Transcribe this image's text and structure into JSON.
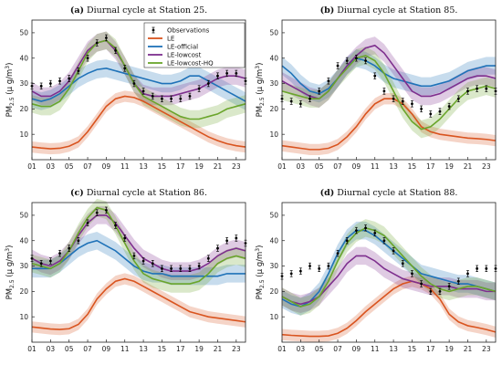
{
  "figure": {
    "xticks": [
      "01",
      "03",
      "05",
      "07",
      "09",
      "11",
      "13",
      "15",
      "17",
      "19",
      "21",
      "23"
    ],
    "yticks": [
      "10",
      "20",
      "30",
      "40",
      "50"
    ],
    "ylabel_main": "PM",
    "ylabel_sub": "2.5",
    "ylabel_unit": " (μ g/m",
    "ylabel_sup": "3",
    "ylabel_close": ")"
  },
  "legend": {
    "items": [
      {
        "label": "Observations",
        "color": "#000000",
        "marker": "errorbar"
      },
      {
        "label": "LE",
        "color": "#d9541f",
        "marker": "line"
      },
      {
        "label": "LE-official",
        "color": "#1f72b8",
        "marker": "line"
      },
      {
        "label": "LE-lowcost",
        "color": "#7e2f8e",
        "marker": "line"
      },
      {
        "label": "LE-lowcost-HQ",
        "color": "#6aa52b",
        "marker": "line"
      }
    ]
  },
  "chart_data": [
    {
      "type": "line",
      "panel_letter": "a",
      "title": "Diurnal cycle at Station 25.",
      "x": [
        1,
        2,
        3,
        4,
        5,
        6,
        7,
        8,
        9,
        10,
        11,
        12,
        13,
        14,
        15,
        16,
        17,
        18,
        19,
        20,
        21,
        22,
        23,
        24
      ],
      "xlim": [
        1,
        24
      ],
      "ylim": [
        0,
        55
      ],
      "ylabel": "PM2.5 (μ g/m3)",
      "series": [
        {
          "name": "Observations",
          "color": "#000000",
          "values": [
            29,
            29,
            30,
            31,
            32,
            35,
            40,
            46,
            48,
            43,
            36,
            30,
            27,
            25,
            24,
            24,
            24,
            25,
            28,
            30,
            33,
            34,
            34,
            31
          ]
        },
        {
          "name": "LE",
          "color": "#d9541f",
          "values": [
            5,
            4.6,
            4.3,
            4.5,
            5.3,
            7,
            11,
            16,
            21,
            24,
            25,
            24.5,
            23,
            21,
            19,
            17,
            15,
            13,
            11,
            9,
            7.5,
            6.3,
            5.5,
            5
          ]
        },
        {
          "name": "LE-official",
          "color": "#1f72b8",
          "values": [
            24,
            23,
            24,
            26,
            29,
            32,
            34,
            35.5,
            36,
            35,
            34,
            33,
            32,
            31,
            30,
            30,
            31,
            33,
            33,
            31,
            29,
            27,
            25,
            23
          ]
        },
        {
          "name": "LE-lowcost",
          "color": "#7e2f8e",
          "values": [
            27,
            25,
            25,
            27,
            31,
            37,
            43,
            46,
            47,
            43,
            37,
            30,
            26,
            25,
            25,
            25,
            26,
            27,
            28,
            30,
            32,
            33,
            33,
            32
          ]
        },
        {
          "name": "LE-lowcost-HQ",
          "color": "#6aa52b",
          "values": [
            22,
            21,
            21,
            23,
            28,
            35,
            42,
            46,
            47,
            44,
            37,
            30,
            25,
            23,
            21,
            19,
            17,
            16,
            16,
            17,
            18,
            20,
            21,
            22
          ]
        }
      ]
    },
    {
      "type": "line",
      "panel_letter": "b",
      "title": "Diurnal cycle at Station 85.",
      "x": [
        1,
        2,
        3,
        4,
        5,
        6,
        7,
        8,
        9,
        10,
        11,
        12,
        13,
        14,
        15,
        16,
        17,
        18,
        19,
        20,
        21,
        22,
        23,
        24
      ],
      "xlim": [
        1,
        24
      ],
      "ylim": [
        0,
        55
      ],
      "ylabel": "PM2.5 (μ g/m3)",
      "series": [
        {
          "name": "Observations",
          "color": "#000000",
          "values": [
            24,
            23,
            22,
            24,
            27,
            31,
            37,
            39,
            40,
            39,
            33,
            27,
            24,
            23,
            22,
            20,
            18,
            19,
            21,
            24,
            27,
            28,
            28,
            27
          ]
        },
        {
          "name": "LE",
          "color": "#d9541f",
          "values": [
            5.5,
            5,
            4.5,
            4,
            4,
            4.5,
            6,
            9,
            13,
            18,
            22,
            24,
            24,
            22,
            18,
            13,
            11,
            10,
            9.5,
            9,
            8.5,
            8.3,
            8,
            7.5
          ]
        },
        {
          "name": "LE-official",
          "color": "#1f72b8",
          "values": [
            37,
            34,
            30,
            27,
            26,
            28,
            32,
            37,
            40,
            39,
            37,
            34,
            32,
            31,
            30,
            29,
            29,
            30,
            31,
            33,
            35,
            36,
            37,
            37
          ]
        },
        {
          "name": "LE-lowcost",
          "color": "#7e2f8e",
          "values": [
            31,
            29,
            27,
            25,
            24,
            27,
            32,
            37,
            41,
            44,
            45,
            42,
            37,
            32,
            27,
            25,
            25,
            26,
            28,
            30,
            32,
            33,
            33,
            32
          ]
        },
        {
          "name": "LE-lowcost-HQ",
          "color": "#6aa52b",
          "values": [
            27,
            26,
            25,
            24,
            24,
            27,
            32,
            36,
            40,
            41,
            39,
            34,
            27,
            20,
            15,
            12,
            13,
            16,
            20,
            24,
            27,
            28,
            29,
            28
          ]
        }
      ]
    },
    {
      "type": "line",
      "panel_letter": "c",
      "title": "Diurnal cycle at Station 86.",
      "x": [
        1,
        2,
        3,
        4,
        5,
        6,
        7,
        8,
        9,
        10,
        11,
        12,
        13,
        14,
        15,
        16,
        17,
        18,
        19,
        20,
        21,
        22,
        23,
        24
      ],
      "xlim": [
        1,
        24
      ],
      "ylim": [
        0,
        55
      ],
      "ylabel": "PM2.5 (μ g/m3)",
      "series": [
        {
          "name": "Observations",
          "color": "#000000",
          "values": [
            33,
            31,
            32,
            35,
            37,
            40,
            47,
            51,
            52,
            46,
            41,
            34,
            32,
            31,
            29,
            29,
            29,
            29,
            30,
            33,
            37,
            40,
            41,
            39
          ]
        },
        {
          "name": "LE",
          "color": "#d9541f",
          "values": [
            6,
            5.6,
            5.2,
            5,
            5.3,
            7,
            11,
            17,
            21,
            24,
            25,
            24,
            22,
            20,
            18,
            16,
            14,
            12,
            11,
            10,
            9.5,
            9,
            8.5,
            8
          ]
        },
        {
          "name": "LE-official",
          "color": "#1f72b8",
          "values": [
            29,
            29,
            29,
            31,
            34,
            37,
            39,
            40,
            38,
            36,
            33,
            30,
            28,
            27,
            27,
            26,
            26,
            26,
            26,
            26,
            26,
            27,
            27,
            27
          ]
        },
        {
          "name": "LE-lowcost",
          "color": "#7e2f8e",
          "values": [
            33,
            31,
            30,
            32,
            36,
            42,
            47,
            50,
            50,
            47,
            42,
            37,
            33,
            31,
            29,
            28,
            28,
            28,
            29,
            31,
            34,
            36,
            37,
            36
          ]
        },
        {
          "name": "LE-lowcost-HQ",
          "color": "#6aa52b",
          "values": [
            31,
            30,
            29,
            31,
            36,
            43,
            49,
            53,
            52,
            46,
            39,
            32,
            27,
            25,
            24,
            23,
            23,
            23,
            24,
            27,
            31,
            33,
            34,
            33
          ]
        }
      ]
    },
    {
      "type": "line",
      "panel_letter": "d",
      "title": "Diurnal cycle at Station 88.",
      "x": [
        1,
        2,
        3,
        4,
        5,
        6,
        7,
        8,
        9,
        10,
        11,
        12,
        13,
        14,
        15,
        16,
        17,
        18,
        19,
        20,
        21,
        22,
        23,
        24
      ],
      "xlim": [
        1,
        24
      ],
      "ylim": [
        0,
        55
      ],
      "ylabel": "PM2.5 (μ g/m3)",
      "series": [
        {
          "name": "Observations",
          "color": "#000000",
          "values": [
            26,
            27,
            28,
            30,
            29,
            30,
            35,
            40,
            44,
            45,
            43,
            40,
            36,
            31,
            27,
            23,
            20,
            20,
            22,
            24,
            27,
            29,
            29,
            29
          ]
        },
        {
          "name": "LE",
          "color": "#d9541f",
          "values": [
            3,
            2.7,
            2.5,
            2.3,
            2.3,
            2.5,
            3.5,
            5.5,
            8.5,
            12,
            15,
            18,
            21,
            23,
            24,
            23,
            21,
            17,
            11,
            8,
            6.5,
            5.8,
            5,
            4
          ]
        },
        {
          "name": "LE-official",
          "color": "#1f72b8",
          "values": [
            17,
            15,
            14,
            16,
            20,
            27,
            35,
            41,
            44,
            44,
            42,
            39,
            36,
            33,
            30,
            27,
            26,
            25,
            24,
            23,
            23,
            22,
            21,
            20
          ]
        },
        {
          "name": "LE-lowcost",
          "color": "#7e2f8e",
          "values": [
            18,
            16,
            15,
            16,
            18,
            22,
            26,
            31,
            34,
            34,
            32,
            29,
            27,
            25,
            24,
            23,
            22,
            22,
            22,
            21,
            21,
            21,
            20,
            20
          ]
        },
        {
          "name": "LE-lowcost-HQ",
          "color": "#6aa52b",
          "values": [
            18,
            16,
            14,
            15,
            18,
            24,
            32,
            39,
            43,
            45,
            44,
            42,
            38,
            34,
            30,
            26,
            23,
            21,
            20,
            21,
            22,
            22,
            21,
            20
          ]
        }
      ]
    }
  ]
}
